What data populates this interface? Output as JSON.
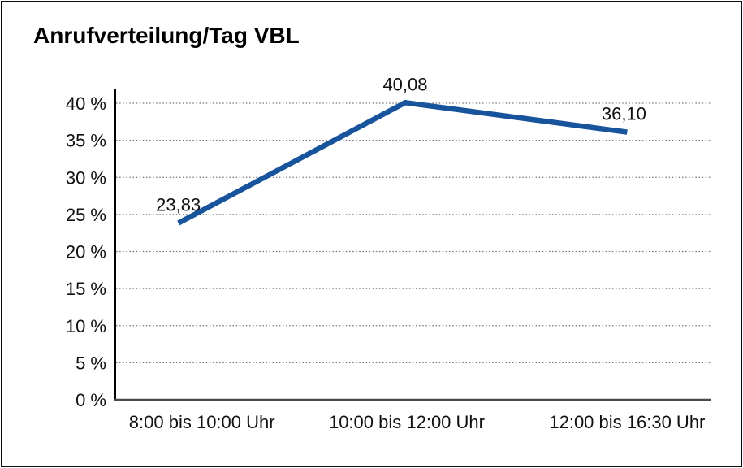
{
  "window": {
    "background": "#ffffff",
    "frame_border_color": "#0d0d0d"
  },
  "chart_data": {
    "type": "line",
    "title": "Anrufverteilung/Tag VBL",
    "categories": [
      "8:00 bis 10:00 Uhr",
      "10:00 bis 12:00 Uhr",
      "12:00 bis 16:30 Uhr"
    ],
    "series": [
      {
        "name": "Anrufverteilung/Tag VBL",
        "values": [
          23.83,
          40.08,
          36.1
        ],
        "point_labels": [
          "23,83",
          "40,08",
          "36,10"
        ],
        "color": "#17549C"
      }
    ],
    "xlabel": "",
    "ylabel": "",
    "y_ticks": [
      0,
      5,
      10,
      15,
      20,
      25,
      30,
      35,
      40
    ],
    "y_tick_labels": [
      "0 %",
      "5 %",
      "10 %",
      "15 %",
      "20 %",
      "25 %",
      "30 %",
      "35 %",
      "40 %"
    ],
    "ylim": [
      0,
      42
    ],
    "grid": "horizontal dotted",
    "gridline_color": "#737373",
    "x_axis_color": "#4a4a4a",
    "y_axis_color": "#000000",
    "legend_position": "none"
  }
}
